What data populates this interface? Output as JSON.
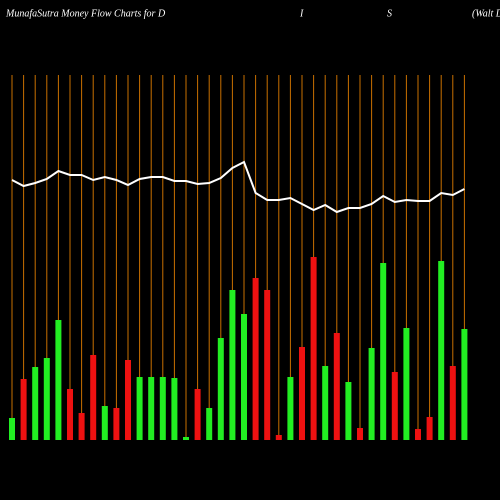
{
  "chart_data": {
    "type": "bar",
    "title_parts": [
      "MunafaSutra  Money Flow  Charts for D",
      "I",
      "S",
      "(Walt D"
    ],
    "categories": [
      null,
      null,
      null,
      null,
      null,
      null,
      null,
      null,
      null,
      null,
      null,
      null,
      null,
      null,
      null,
      null,
      null,
      null,
      null,
      null,
      null,
      null,
      null,
      null,
      null,
      null,
      null,
      null,
      null,
      null,
      null,
      null,
      null,
      null,
      null,
      null,
      null,
      null,
      null,
      null
    ],
    "bars": {
      "values": [
        22,
        61,
        73,
        82,
        120,
        51,
        27,
        85,
        34,
        32,
        80,
        63,
        63,
        63,
        62,
        3,
        51,
        32,
        102,
        150,
        126,
        162,
        150,
        5,
        63,
        93,
        183,
        74,
        107,
        58,
        12,
        92,
        177,
        68,
        112,
        11,
        23,
        179,
        74,
        111
      ],
      "colors": [
        "#22ee22",
        "#ee1111",
        "#22ee22",
        "#22ee22",
        "#22ee22",
        "#ee1111",
        "#ee1111",
        "#ee1111",
        "#22ee22",
        "#ee1111",
        "#ee1111",
        "#22ee22",
        "#22ee22",
        "#22ee22",
        "#22ee22",
        "#22ee22",
        "#ee1111",
        "#22ee22",
        "#22ee22",
        "#22ee22",
        "#22ee22",
        "#ee1111",
        "#ee1111",
        "#ee1111",
        "#22ee22",
        "#ee1111",
        "#ee1111",
        "#22ee22",
        "#ee1111",
        "#22ee22",
        "#ee1111",
        "#22ee22",
        "#22ee22",
        "#ee1111",
        "#22ee22",
        "#ee1111",
        "#ee1111",
        "#22ee22",
        "#ee1111",
        "#22ee22"
      ]
    },
    "line": {
      "color": "#ffffff",
      "values": [
        260,
        254,
        257,
        261,
        269,
        265,
        265,
        260,
        263,
        260,
        255,
        261,
        263,
        263,
        259,
        259,
        256,
        257,
        262,
        272,
        278,
        247,
        240,
        240,
        242,
        236,
        230,
        235,
        228,
        232,
        232,
        236,
        244,
        238,
        240,
        239,
        239,
        247,
        245,
        251
      ]
    },
    "ylim": [
      0,
      400
    ],
    "grid": true,
    "grid_color": "#c87000"
  }
}
